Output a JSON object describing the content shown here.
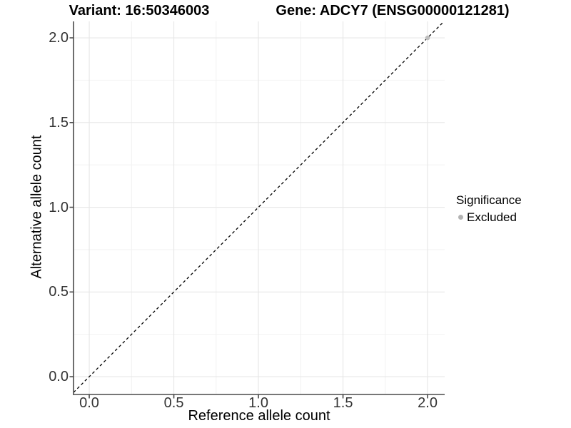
{
  "chart_data": {
    "type": "scatter",
    "title_variant": "Variant: 16:50346003",
    "title_gene": "Gene: ADCY7 (ENSG00000121281)",
    "xlabel": "Reference allele count",
    "ylabel": "Alternative allele count",
    "xlim": [
      -0.093,
      2.101
    ],
    "ylim": [
      -0.105,
      2.097
    ],
    "xticks": [
      {
        "v": 0,
        "label": "0.0"
      },
      {
        "v": 0.5,
        "label": "0.5"
      },
      {
        "v": 1,
        "label": "1.0"
      },
      {
        "v": 1.5,
        "label": "1.5"
      },
      {
        "v": 2,
        "label": "2.0"
      }
    ],
    "yticks": [
      {
        "v": 0,
        "label": "0.0"
      },
      {
        "v": 0.5,
        "label": "0.5"
      },
      {
        "v": 1,
        "label": "1.0"
      },
      {
        "v": 1.5,
        "label": "1.5"
      },
      {
        "v": 2,
        "label": "2.0"
      }
    ],
    "xminor": [
      0.25,
      0.75,
      1.25,
      1.75
    ],
    "yminor": [
      0.25,
      0.75,
      1.25,
      1.75
    ],
    "grid": true,
    "identity_line": {
      "dashed": true,
      "equation": "y = x"
    },
    "series": [
      {
        "name": "Excluded",
        "color": "#bebebe",
        "points": [
          {
            "x": 2.0,
            "y": 2.0
          }
        ]
      }
    ],
    "legend": {
      "title": "Significance",
      "position": "right",
      "entries": [
        {
          "label": "Excluded",
          "color": "#b3b3b3"
        }
      ]
    }
  },
  "colors": {
    "background": "#ffffff",
    "axis_line": "#4a4a4a",
    "tick_label": "#333333",
    "grid_major": "#e7e7e7",
    "grid_minor": "#f2f2f2",
    "identity_line": "#000000",
    "point": "#bebebe"
  }
}
